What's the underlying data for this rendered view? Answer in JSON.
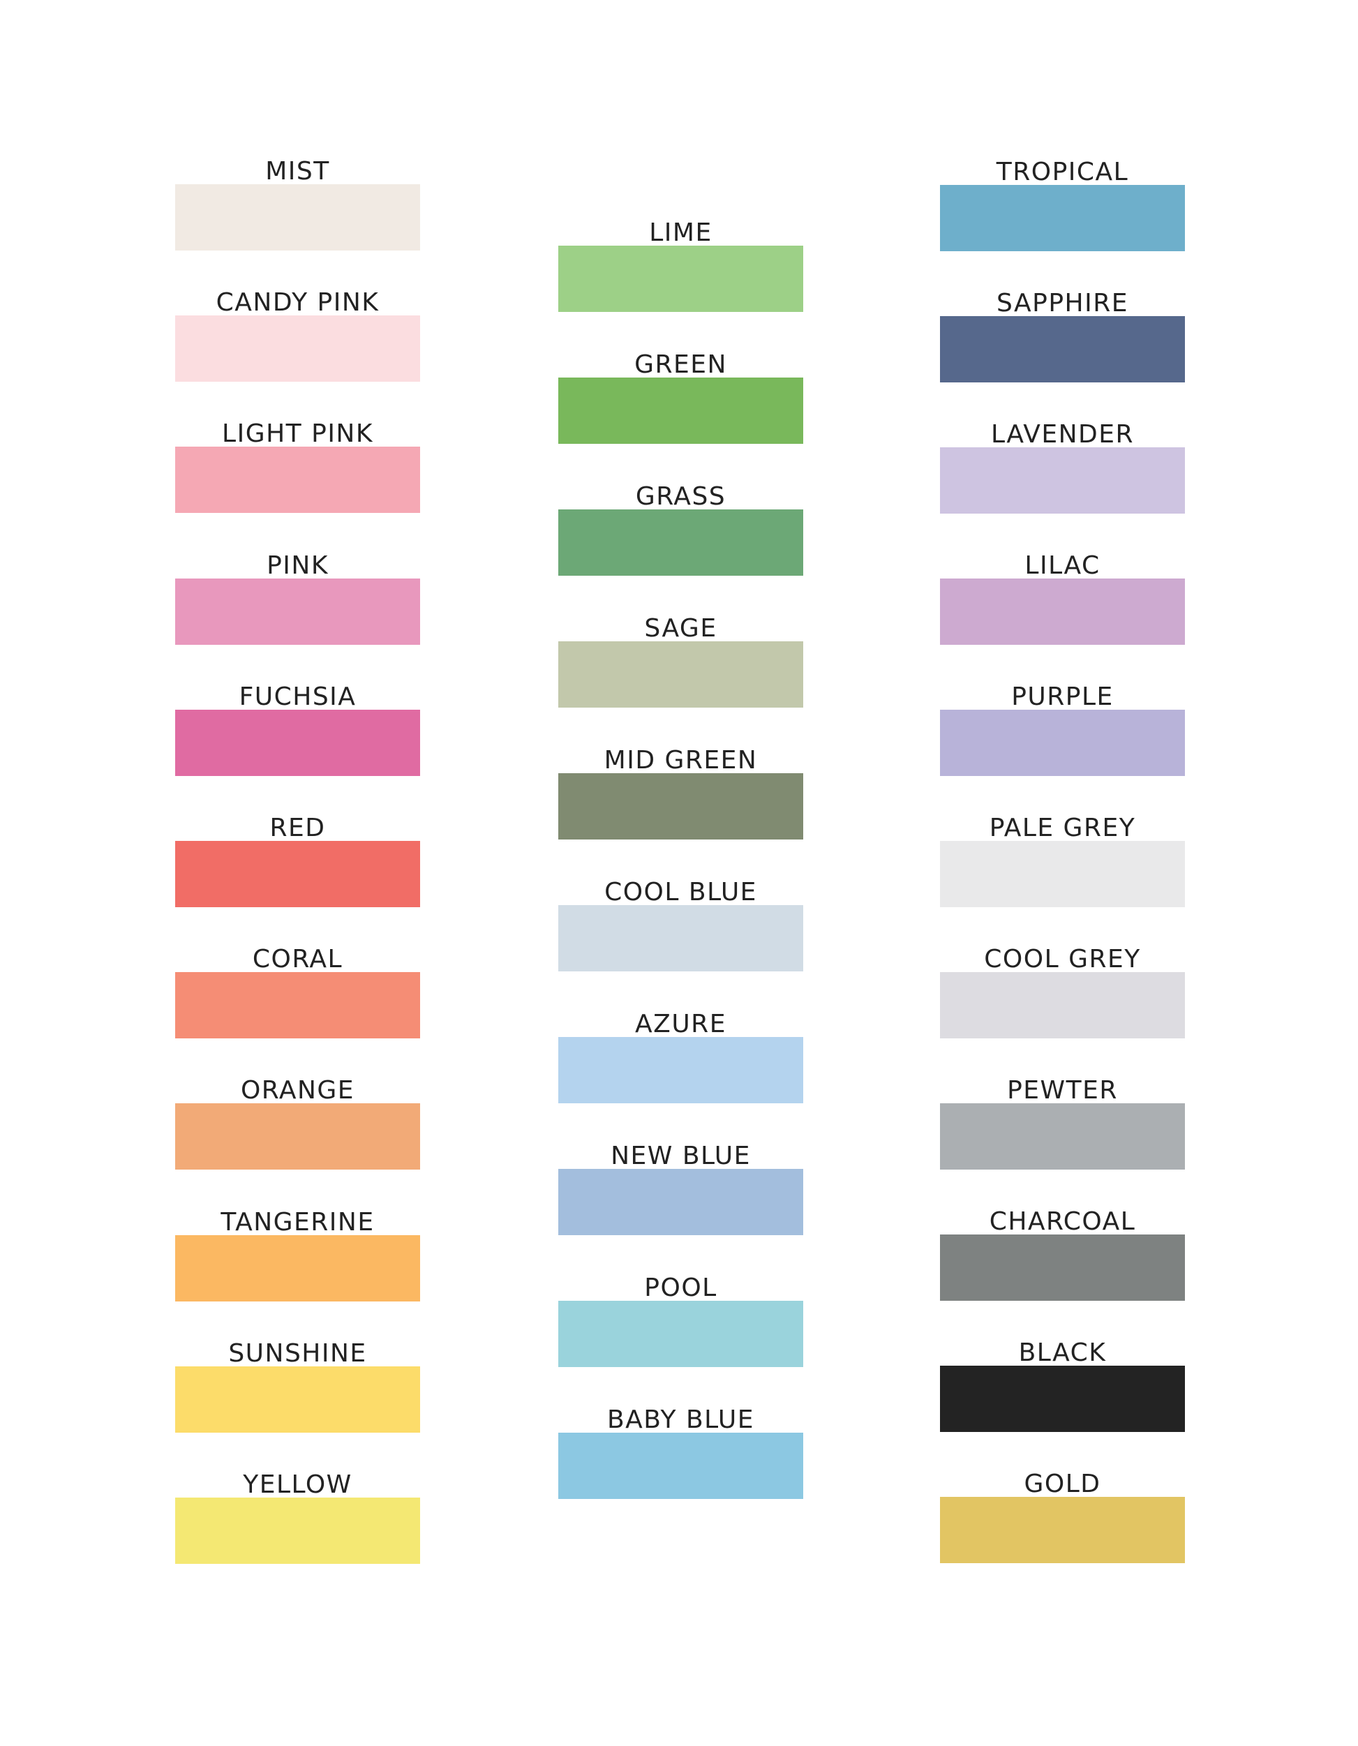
{
  "columns": [
    [
      {
        "name": "MIST",
        "color": "#f1eae3"
      },
      {
        "name": "CANDY PINK",
        "color": "#fbdde0"
      },
      {
        "name": "LIGHT PINK",
        "color": "#f5a8b4"
      },
      {
        "name": "PINK",
        "color": "#e898bd"
      },
      {
        "name": "FUCHSIA",
        "color": "#e06ba2"
      },
      {
        "name": "RED",
        "color": "#f16d66"
      },
      {
        "name": "CORAL",
        "color": "#f58d75"
      },
      {
        "name": "ORANGE",
        "color": "#f2aa77"
      },
      {
        "name": "TANGERINE",
        "color": "#fbb862"
      },
      {
        "name": "SUNSHINE",
        "color": "#fcdc6a"
      },
      {
        "name": "YELLOW",
        "color": "#f4e873"
      }
    ],
    [
      {
        "name": "LIME",
        "color": "#9dd087"
      },
      {
        "name": "GREEN",
        "color": "#79b85b"
      },
      {
        "name": "GRASS",
        "color": "#6ca876"
      },
      {
        "name": "SAGE",
        "color": "#c2c8ab"
      },
      {
        "name": "MID GREEN",
        "color": "#808b71"
      },
      {
        "name": "COOL BLUE",
        "color": "#d1dce5"
      },
      {
        "name": "AZURE",
        "color": "#b4d3ee"
      },
      {
        "name": "NEW BLUE",
        "color": "#a3bedd"
      },
      {
        "name": "POOL",
        "color": "#9ad3dc"
      },
      {
        "name": "BABY BLUE",
        "color": "#8cc8e2"
      }
    ],
    [
      {
        "name": "TROPICAL",
        "color": "#6eafcb"
      },
      {
        "name": "SAPPHIRE",
        "color": "#56688c"
      },
      {
        "name": "LAVENDER",
        "color": "#cec4e1"
      },
      {
        "name": "LILAC",
        "color": "#cdaad0"
      },
      {
        "name": "PURPLE",
        "color": "#b8b3d9"
      },
      {
        "name": "PALE GREY",
        "color": "#e9e9ea"
      },
      {
        "name": "COOL GREY",
        "color": "#dddce1"
      },
      {
        "name": "PEWTER",
        "color": "#abafb2"
      },
      {
        "name": "CHARCOAL",
        "color": "#7e8281"
      },
      {
        "name": "BLACK",
        "color": "#232323"
      },
      {
        "name": "GOLD",
        "color": "#e2c563"
      }
    ]
  ]
}
